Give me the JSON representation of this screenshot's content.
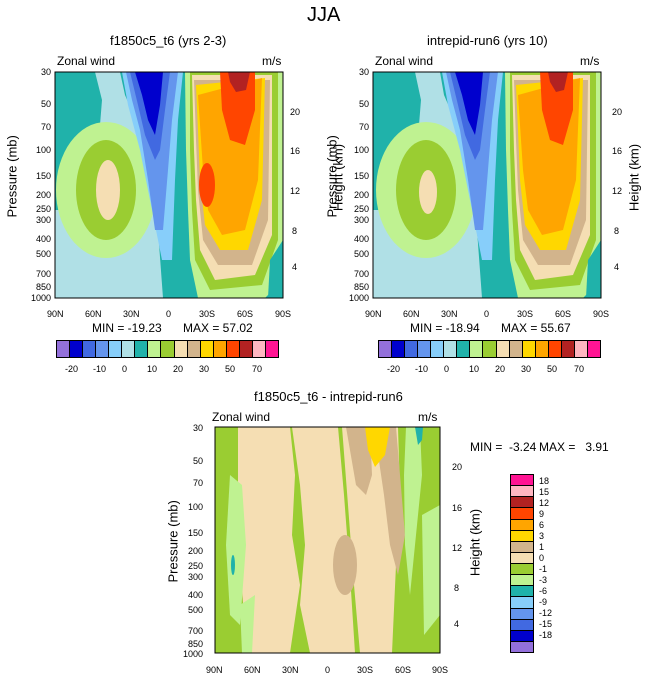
{
  "figure_title": "JJA",
  "colors": {
    "scale_a": [
      "#9370DB",
      "#0000CD",
      "#4169E1",
      "#6495ED",
      "#87CEFA",
      "#B0E0E6",
      "#20B2AA",
      "#BFF291",
      "#9ACD32",
      "#F5DEB3",
      "#D2B48C",
      "#FFD700",
      "#FFA500",
      "#FF4500",
      "#B22222",
      "#FFB6C1",
      "#FF1493"
    ],
    "scale_b": [
      "#9370DB",
      "#0000CD",
      "#4169E1",
      "#6495ED",
      "#87CEFA",
      "#20B2AA",
      "#BFF291",
      "#9ACD32",
      "#F5DEB3",
      "#D2B48C",
      "#FFD700",
      "#FFA500",
      "#FF4500",
      "#B22222",
      "#FFB6C1",
      "#FF1493"
    ]
  },
  "chart_data": [
    {
      "type": "contour",
      "title": "f1850c5_t6 (yrs 2-3)",
      "left_label": "Zonal wind",
      "right_label": "m/s",
      "xlabel": "",
      "ylabel": "Pressure (mb)",
      "y2label": "Height (km)",
      "x_ticks": [
        "90N",
        "60N",
        "30N",
        "0",
        "30S",
        "60S",
        "90S"
      ],
      "y_ticks": [
        "30",
        "50",
        "70",
        "100",
        "150",
        "200",
        "250",
        "300",
        "400",
        "500",
        "700",
        "850",
        "1000"
      ],
      "y2_ticks": [
        "20",
        "16",
        "12",
        "8",
        "4"
      ],
      "min_text": "MIN = -19.23",
      "max_text": "MAX = 57.02",
      "min": -19.23,
      "max": 57.02
    },
    {
      "type": "contour",
      "title": "intrepid-run6 (yrs 10)",
      "left_label": "Zonal wind",
      "right_label": "m/s",
      "xlabel": "",
      "ylabel": "Pressure (mb)",
      "y2label": "Height (km)",
      "x_ticks": [
        "90N",
        "60N",
        "30N",
        "0",
        "30S",
        "60S",
        "90S"
      ],
      "y_ticks": [
        "30",
        "50",
        "70",
        "100",
        "150",
        "200",
        "250",
        "300",
        "400",
        "500",
        "700",
        "850",
        "1000"
      ],
      "y2_ticks": [
        "20",
        "16",
        "12",
        "8",
        "4"
      ],
      "min_text": "MIN = -18.94",
      "max_text": "MAX = 55.67",
      "min": -18.94,
      "max": 55.67
    },
    {
      "type": "contour",
      "title": "f1850c5_t6 - intrepid-run6",
      "left_label": "Zonal wind",
      "right_label": "m/s",
      "xlabel": "",
      "ylabel": "Pressure (mb)",
      "y2label": "Height (km)",
      "x_ticks": [
        "90N",
        "60N",
        "30N",
        "0",
        "30S",
        "60S",
        "90S"
      ],
      "y_ticks": [
        "30",
        "50",
        "70",
        "100",
        "150",
        "200",
        "250",
        "300",
        "400",
        "500",
        "700",
        "850",
        "1000"
      ],
      "y2_ticks": [
        "20",
        "16",
        "12",
        "8",
        "4"
      ],
      "min_text": "MIN =  -3.24",
      "max_text": "MAX =   3.91",
      "min": -3.24,
      "max": 3.91
    }
  ],
  "colorbar_top": {
    "labels": [
      "-20",
      "-10",
      "0",
      "10",
      "20",
      "30",
      "50",
      "70"
    ]
  },
  "colorbar_diff": {
    "labels": [
      "18",
      "15",
      "12",
      "9",
      "6",
      "3",
      "1",
      "0",
      "-1",
      "-3",
      "-6",
      "-9",
      "-12",
      "-15",
      "-18"
    ]
  }
}
